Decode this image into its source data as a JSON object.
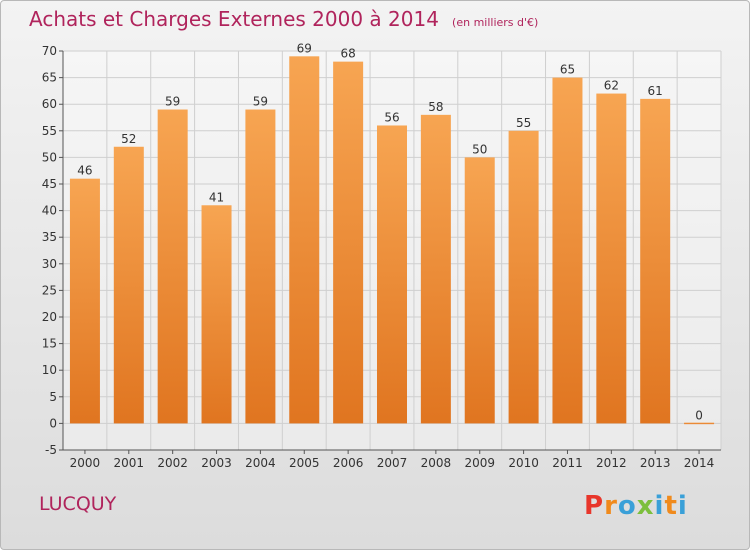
{
  "header": {
    "title": "Achats et Charges Externes 2000 à 2014",
    "subtitle": "(en milliers d'€)"
  },
  "footer": {
    "commune": "LUCQUY",
    "logo_letters": [
      "P",
      "r",
      "o",
      "x",
      "i",
      "t",
      "i"
    ]
  },
  "colors": {
    "title": "#b0245c",
    "bar_light": "#f7a552",
    "bar_dark": "#e07520",
    "grid": "#cfcfcf",
    "axis": "#555555",
    "logo": [
      "#e8362b",
      "#f08a1c",
      "#3aa0d8",
      "#7cbf3c",
      "#3aa0d8",
      "#f08a1c",
      "#3aa0d8"
    ]
  },
  "chart_data": {
    "type": "bar",
    "title": "Achats et Charges Externes 2000 à 2014",
    "subtitle": "(en milliers d'€)",
    "categories": [
      "2000",
      "2001",
      "2002",
      "2003",
      "2004",
      "2005",
      "2006",
      "2007",
      "2008",
      "2009",
      "2010",
      "2011",
      "2012",
      "2013",
      "2014"
    ],
    "values": [
      46,
      52,
      59,
      41,
      59,
      69,
      68,
      56,
      58,
      50,
      55,
      65,
      62,
      61,
      0
    ],
    "value_labels": [
      "46",
      "52",
      "59",
      "41",
      "59",
      "69",
      "68",
      "56",
      "58",
      "50",
      "55",
      "65",
      "62",
      "61",
      "0"
    ],
    "ylim": [
      -5,
      70
    ],
    "yticks": [
      -5,
      0,
      5,
      10,
      15,
      20,
      25,
      30,
      35,
      40,
      45,
      50,
      55,
      60,
      65,
      70
    ],
    "ytick_labels": [
      "-5",
      "0",
      "5",
      "10",
      "15",
      "20",
      "25",
      "30",
      "35",
      "40",
      "45",
      "50",
      "55",
      "60",
      "65",
      "70"
    ],
    "grid": true,
    "legend": "none"
  }
}
